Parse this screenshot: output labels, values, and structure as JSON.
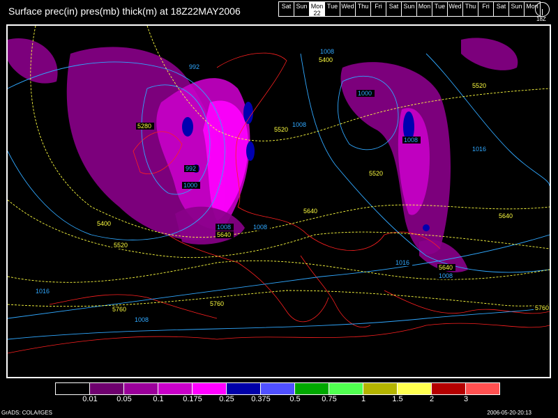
{
  "title": "Surface prec(in) pres(mb) thick(m) at 18Z22MAY2006",
  "day_strip": {
    "days": [
      "Sat",
      "Sun",
      "Mon",
      "Tue",
      "Wed",
      "Thu",
      "Fri",
      "Sat",
      "Sun",
      "Mon",
      "Tue",
      "Wed",
      "Thu",
      "Fri",
      "Sat",
      "Sun",
      "Mon"
    ],
    "current_index": 2,
    "current_date": "22",
    "clock_label": "18Z"
  },
  "map": {
    "colors": {
      "coastline": "#ff2020",
      "pressure": "#30a8ff",
      "thickness": "#ffff40",
      "precip_light": "#8a008a",
      "precip_mid": "#c800c8",
      "precip_heavy": "#ff00ff",
      "precip_max": "#0000b0"
    },
    "pressure_labels": [
      "992",
      "1008",
      "1000",
      "1008",
      "1008",
      "1016",
      "992",
      "1000",
      "1008",
      "1016",
      "1008",
      "1016",
      "1008",
      "1008"
    ],
    "thickness_labels": [
      "5400",
      "5520",
      "5280",
      "5520",
      "5520",
      "5640",
      "5400",
      "5520",
      "5640",
      "5640",
      "5640",
      "5760",
      "5760",
      "5760",
      "5640"
    ]
  },
  "legend": {
    "colors": [
      "#000000",
      "#6e006e",
      "#9a009a",
      "#c800c8",
      "#ff00ff",
      "#0000a8",
      "#5050ff",
      "#00a800",
      "#50ff50",
      "#b4b400",
      "#ffff50",
      "#b40000",
      "#ff5050"
    ],
    "labels": [
      "0.01",
      "0.05",
      "0.1",
      "0.175",
      "0.25",
      "0.375",
      "0.5",
      "0.75",
      "1",
      "1.5",
      "2",
      "3"
    ]
  },
  "footer": {
    "left": "GrADS: COLA/IGES",
    "right": "2006-05-20-20:13"
  }
}
